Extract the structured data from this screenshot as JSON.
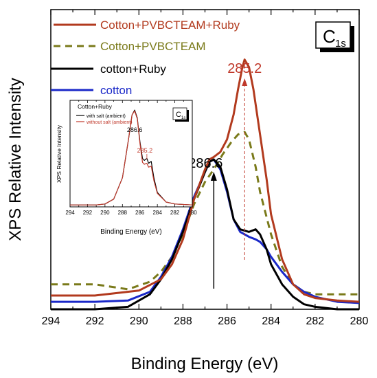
{
  "chart_data": [
    {
      "type": "line",
      "xlabel": "Binding Energy (eV)",
      "ylabel": "XPS Relative Intensity",
      "xlim": [
        294,
        280
      ],
      "x_reversed": true,
      "ylim": [
        0,
        1.2
      ],
      "y_ticks_labeled": false,
      "x_ticks": [
        "294",
        "292",
        "290",
        "288",
        "286",
        "284",
        "282",
        "280"
      ],
      "x_tick_values": [
        294,
        292,
        290,
        288,
        286,
        284,
        282,
        280
      ],
      "panel_label": {
        "main": "C",
        "sub": "1s"
      },
      "annotations": [
        {
          "text": "285.2",
          "x": 285.2,
          "color": "#c0392b"
        },
        {
          "text": "286.6",
          "x": 286.6,
          "color": "#000000"
        }
      ],
      "series": [
        {
          "name": "Cotton+PVBCTEAM+Ruby",
          "color": "#b23a1e",
          "style": "solid",
          "points": [
            [
              294,
              0.055
            ],
            [
              292,
              0.055
            ],
            [
              290,
              0.075
            ],
            [
              289,
              0.12
            ],
            [
              288.5,
              0.18
            ],
            [
              288,
              0.28
            ],
            [
              287.5,
              0.44
            ],
            [
              287,
              0.56
            ],
            [
              286.8,
              0.6
            ],
            [
              286.6,
              0.61
            ],
            [
              286.3,
              0.63
            ],
            [
              286.0,
              0.68
            ],
            [
              285.7,
              0.78
            ],
            [
              285.5,
              0.88
            ],
            [
              285.3,
              0.97
            ],
            [
              285.2,
              1.0
            ],
            [
              285.0,
              0.97
            ],
            [
              284.8,
              0.88
            ],
            [
              284.5,
              0.7
            ],
            [
              284.2,
              0.52
            ],
            [
              284.0,
              0.38
            ],
            [
              283.5,
              0.2
            ],
            [
              283.0,
              0.1
            ],
            [
              282.5,
              0.06
            ],
            [
              282,
              0.045
            ],
            [
              281,
              0.035
            ],
            [
              280,
              0.03
            ]
          ]
        },
        {
          "name": "Cotton+PVBCTEAM",
          "color": "#7a7a1a",
          "style": "dashed",
          "points": [
            [
              294,
              0.1
            ],
            [
              292,
              0.1
            ],
            [
              290.5,
              0.08
            ],
            [
              289.5,
              0.11
            ],
            [
              289,
              0.15
            ],
            [
              288.5,
              0.21
            ],
            [
              288,
              0.3
            ],
            [
              287.5,
              0.42
            ],
            [
              287,
              0.51
            ],
            [
              286.6,
              0.56
            ],
            [
              286.2,
              0.62
            ],
            [
              285.8,
              0.67
            ],
            [
              285.5,
              0.7
            ],
            [
              285.2,
              0.71
            ],
            [
              285.0,
              0.68
            ],
            [
              284.7,
              0.57
            ],
            [
              284.5,
              0.47
            ],
            [
              284.0,
              0.3
            ],
            [
              283.5,
              0.17
            ],
            [
              283.0,
              0.1
            ],
            [
              282.5,
              0.07
            ],
            [
              282,
              0.06
            ],
            [
              281,
              0.06
            ],
            [
              280,
              0.06
            ]
          ]
        },
        {
          "name": "cotton+Ruby",
          "color": "#000000",
          "style": "solid",
          "points": [
            [
              294,
              0.0
            ],
            [
              292,
              0.0
            ],
            [
              290.5,
              0.01
            ],
            [
              289.5,
              0.06
            ],
            [
              289,
              0.12
            ],
            [
              288.5,
              0.2
            ],
            [
              288,
              0.31
            ],
            [
              287.5,
              0.44
            ],
            [
              287,
              0.55
            ],
            [
              286.8,
              0.59
            ],
            [
              286.6,
              0.6
            ],
            [
              286.3,
              0.57
            ],
            [
              286.0,
              0.48
            ],
            [
              285.7,
              0.36
            ],
            [
              285.4,
              0.32
            ],
            [
              285.0,
              0.31
            ],
            [
              284.7,
              0.32
            ],
            [
              284.5,
              0.3
            ],
            [
              284.2,
              0.24
            ],
            [
              284.0,
              0.18
            ],
            [
              283.5,
              0.1
            ],
            [
              283.0,
              0.05
            ],
            [
              282.5,
              0.02
            ],
            [
              282,
              0.01
            ],
            [
              281,
              0.0
            ],
            [
              280,
              0.0
            ]
          ]
        },
        {
          "name": "cotton",
          "color": "#1a28c8",
          "style": "solid",
          "points": [
            [
              294,
              0.03
            ],
            [
              292,
              0.03
            ],
            [
              290.5,
              0.035
            ],
            [
              289.5,
              0.07
            ],
            [
              289,
              0.13
            ],
            [
              288.5,
              0.21
            ],
            [
              288,
              0.32
            ],
            [
              287.5,
              0.45
            ],
            [
              287,
              0.55
            ],
            [
              286.8,
              0.59
            ],
            [
              286.6,
              0.6
            ],
            [
              286.3,
              0.56
            ],
            [
              286.0,
              0.47
            ],
            [
              285.7,
              0.36
            ],
            [
              285.4,
              0.31
            ],
            [
              285.0,
              0.29
            ],
            [
              284.7,
              0.28
            ],
            [
              284.5,
              0.27
            ],
            [
              284.2,
              0.24
            ],
            [
              284.0,
              0.21
            ],
            [
              283.5,
              0.15
            ],
            [
              283.0,
              0.1
            ],
            [
              282.5,
              0.07
            ],
            [
              282,
              0.05
            ],
            [
              281,
              0.03
            ],
            [
              280,
              0.025
            ]
          ]
        }
      ]
    },
    {
      "type": "line",
      "inset": true,
      "title": "Cotton+Ruby",
      "xlabel": "Binding Energy (eV)",
      "ylabel": "XPS Relative Intensity",
      "xlim": [
        294,
        280
      ],
      "x_reversed": true,
      "ylim": [
        0,
        1.1
      ],
      "x_ticks": [
        "294",
        "292",
        "290",
        "288",
        "286",
        "284",
        "282",
        "280"
      ],
      "x_tick_values": [
        294,
        292,
        290,
        288,
        286,
        284,
        282,
        280
      ],
      "panel_label": {
        "main": "C",
        "sub": "1s"
      },
      "annotations": [
        {
          "text": "286.6",
          "x": 286.6,
          "color": "#000000"
        },
        {
          "text": "285.2",
          "x": 285.2,
          "color": "#c0392b"
        }
      ],
      "series": [
        {
          "name": "with salt (ambient)",
          "color": "#000000",
          "points": [
            [
              294,
              0.02
            ],
            [
              291,
              0.02
            ],
            [
              290,
              0.03
            ],
            [
              289,
              0.08
            ],
            [
              288,
              0.3
            ],
            [
              287.3,
              0.7
            ],
            [
              286.9,
              0.95
            ],
            [
              286.6,
              1.0
            ],
            [
              286.3,
              0.92
            ],
            [
              286,
              0.68
            ],
            [
              285.7,
              0.5
            ],
            [
              285.5,
              0.48
            ],
            [
              285.2,
              0.5
            ],
            [
              285.0,
              0.45
            ],
            [
              284.7,
              0.47
            ],
            [
              284.4,
              0.3
            ],
            [
              284,
              0.15
            ],
            [
              283,
              0.05
            ],
            [
              282,
              0.03
            ],
            [
              280,
              0.02
            ]
          ]
        },
        {
          "name": "without salt (ambient)",
          "color": "#c0392b",
          "points": [
            [
              294,
              0.02
            ],
            [
              291,
              0.02
            ],
            [
              290,
              0.03
            ],
            [
              289,
              0.08
            ],
            [
              288,
              0.3
            ],
            [
              287.3,
              0.7
            ],
            [
              286.9,
              0.95
            ],
            [
              286.6,
              0.99
            ],
            [
              286.3,
              0.91
            ],
            [
              286,
              0.66
            ],
            [
              285.7,
              0.46
            ],
            [
              285.5,
              0.44
            ],
            [
              285.2,
              0.45
            ],
            [
              285.0,
              0.41
            ],
            [
              284.7,
              0.42
            ],
            [
              284.4,
              0.27
            ],
            [
              284,
              0.14
            ],
            [
              283,
              0.05
            ],
            [
              282,
              0.03
            ],
            [
              280,
              0.02
            ]
          ]
        }
      ]
    }
  ]
}
